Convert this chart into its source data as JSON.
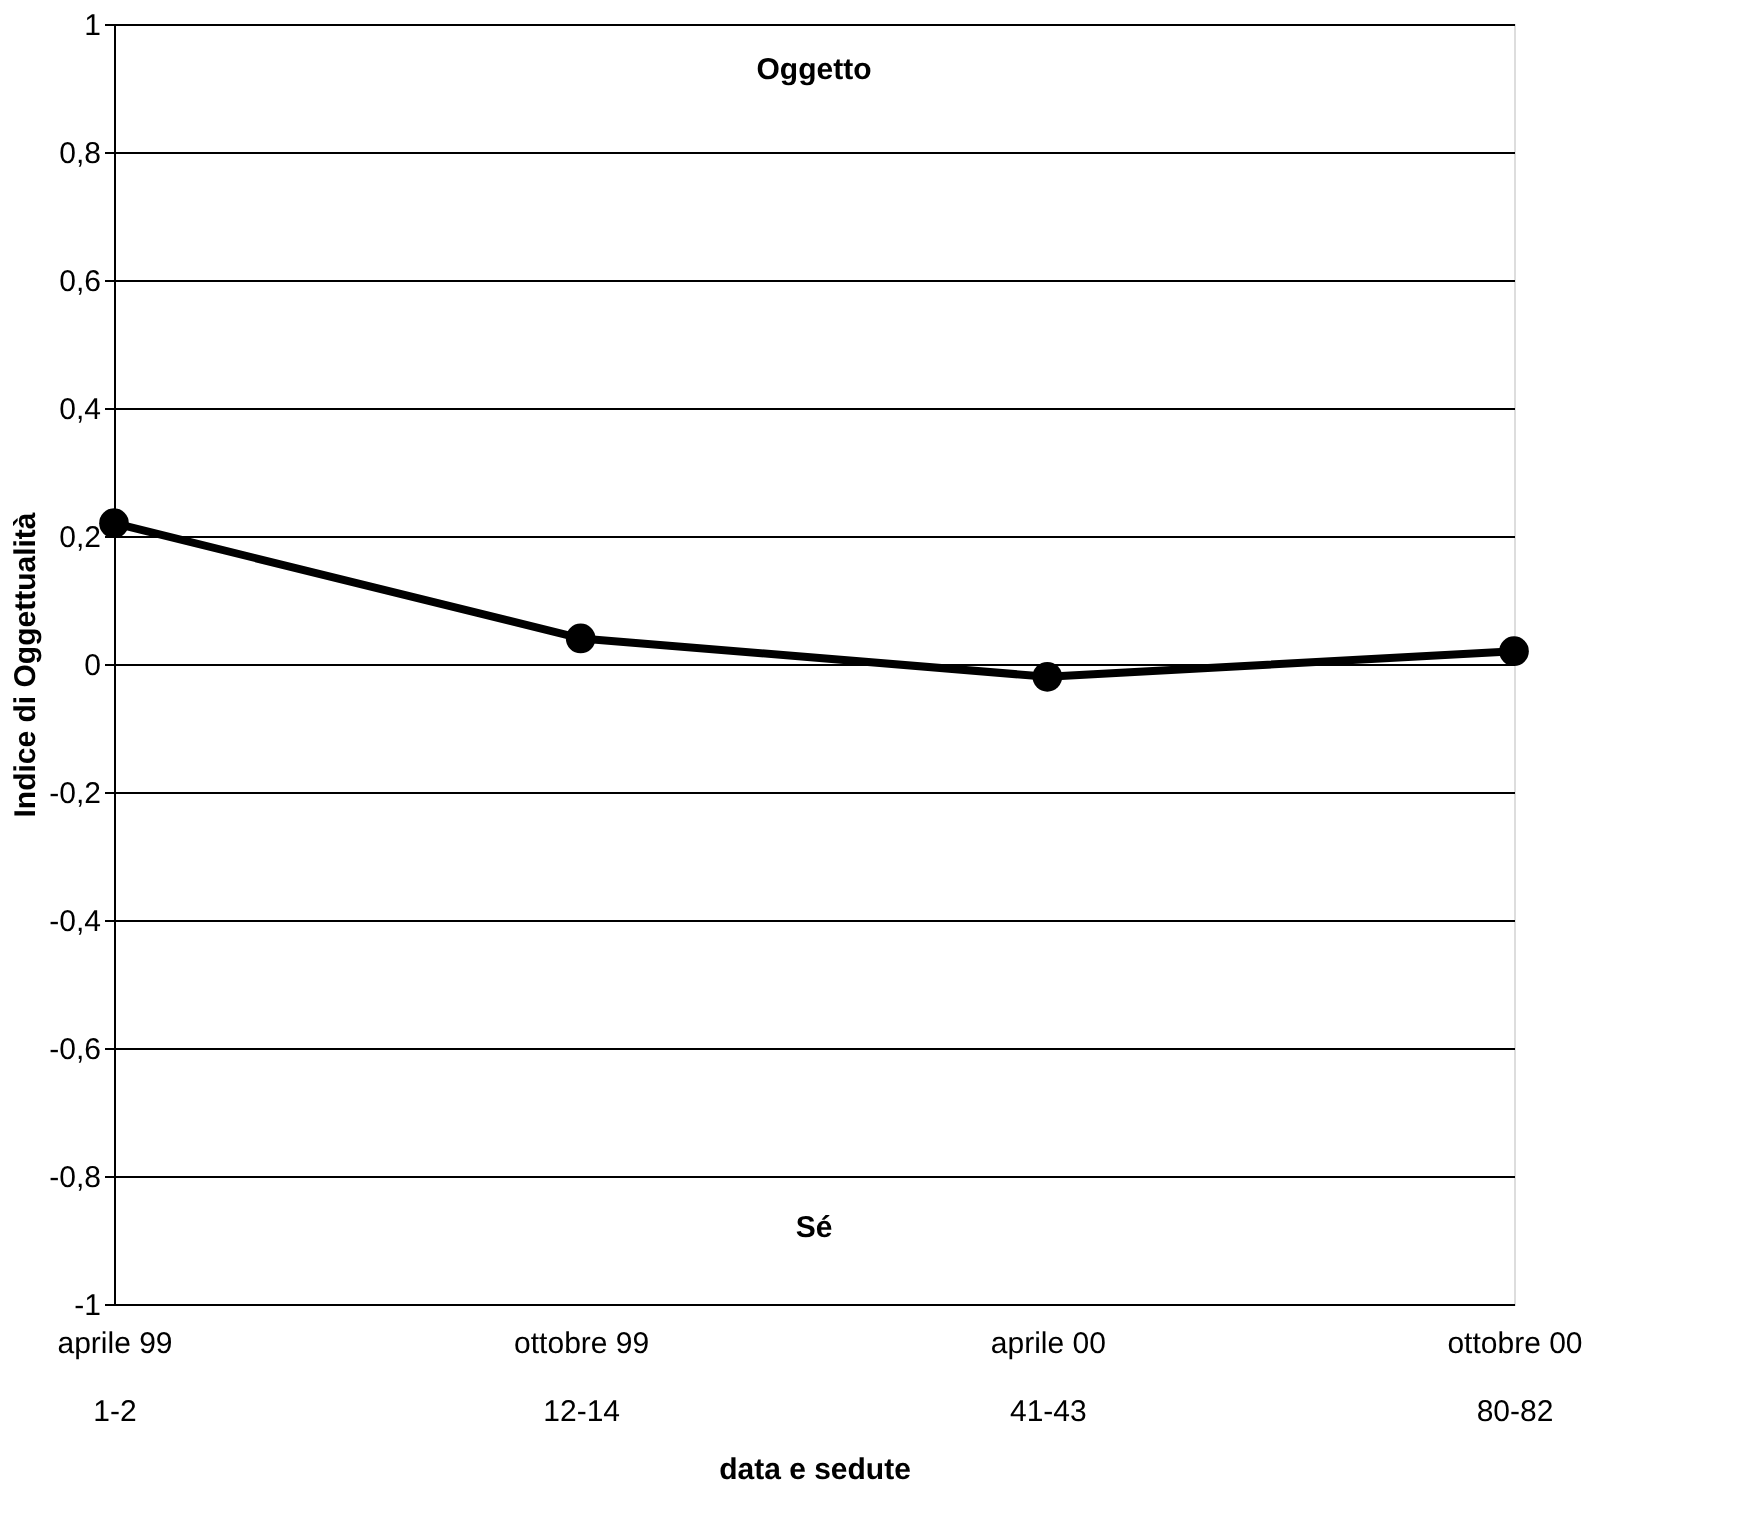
{
  "chart_data": {
    "type": "line",
    "categories": [
      "aprile 99\n1-2",
      "ottobre 99\n12-14",
      "aprile 00\n41-43",
      "ottobre 00\n80-82"
    ],
    "series": [
      {
        "color": "#000000",
        "values": [
          0.22,
          0.04,
          -0.02,
          0.02
        ]
      }
    ],
    "xlabel": "data e sedute",
    "ylabel": "Indice di Oggettualità",
    "annotations": [
      "Oggetto",
      "Sé"
    ],
    "ylim": [
      -1,
      1
    ],
    "yticks": [
      {
        "value": -1,
        "label": "-1"
      },
      {
        "value": -0.8,
        "label": "-0,8"
      },
      {
        "value": -0.6,
        "label": "-0,6"
      },
      {
        "value": -0.4,
        "label": "-0,4"
      },
      {
        "value": -0.2,
        "label": "-0,2"
      },
      {
        "value": 0,
        "label": "0"
      },
      {
        "value": 0.2,
        "label": "0,2"
      },
      {
        "value": 0.4,
        "label": "0,4"
      },
      {
        "value": 0.6,
        "label": "0,6"
      },
      {
        "value": 0.8,
        "label": "0,8"
      },
      {
        "value": 1,
        "label": "1"
      }
    ],
    "grid": "y",
    "marker": "circle",
    "line_style": "solid"
  }
}
